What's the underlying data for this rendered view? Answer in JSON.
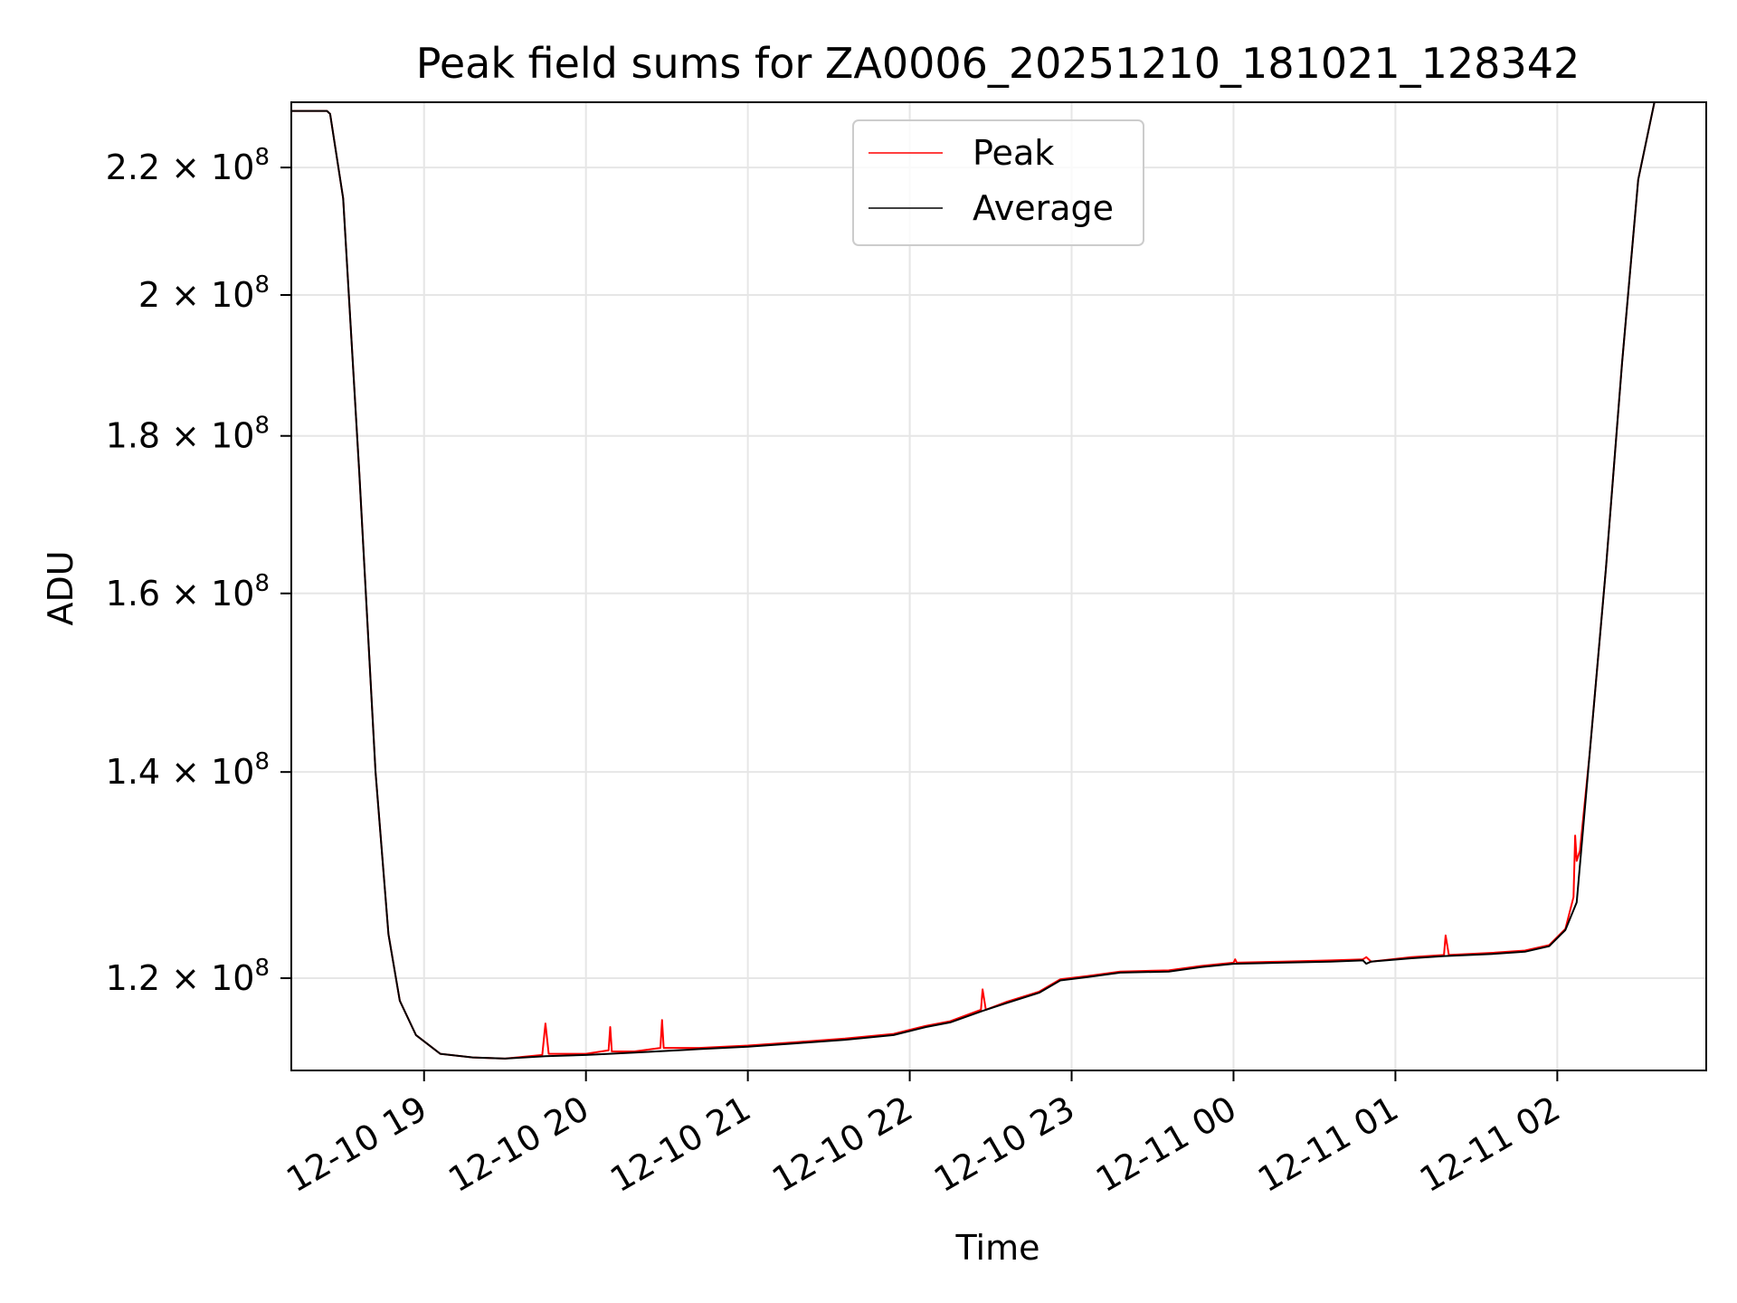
{
  "chart_data": {
    "type": "line",
    "title": "Peak field sums for ZA0006_20251210_181021_128342",
    "xlabel": "Time",
    "ylabel": "ADU",
    "yscale": "log",
    "ylim": [
      112000000,
      231000000
    ],
    "xlim_hours": [
      18.18,
      26.92
    ],
    "grid": true,
    "legend": {
      "location": "upper center",
      "entries": [
        "Peak",
        "Average"
      ]
    },
    "x_ticks": [
      {
        "hour": 19,
        "label": "12-10 19"
      },
      {
        "hour": 20,
        "label": "12-10 20"
      },
      {
        "hour": 21,
        "label": "12-10 21"
      },
      {
        "hour": 22,
        "label": "12-10 22"
      },
      {
        "hour": 23,
        "label": "12-10 23"
      },
      {
        "hour": 24,
        "label": "12-11 00"
      },
      {
        "hour": 25,
        "label": "12-11 01"
      },
      {
        "hour": 26,
        "label": "12-11 02"
      }
    ],
    "y_ticks": [
      {
        "value": 120000000,
        "mantissa": "1.2",
        "exponent": "8"
      },
      {
        "value": 140000000,
        "mantissa": "1.4",
        "exponent": "8"
      },
      {
        "value": 160000000,
        "mantissa": "1.6",
        "exponent": "8"
      },
      {
        "value": 180000000,
        "mantissa": "1.8",
        "exponent": "8"
      },
      {
        "value": 200000000,
        "mantissa": "2",
        "exponent": "8"
      },
      {
        "value": 220000000,
        "mantissa": "2.2",
        "exponent": "8"
      }
    ],
    "x_tick_times_label": "hours since 2025-12-10 00:00",
    "series": [
      {
        "name": "Peak",
        "color": "#ff0000",
        "x": [
          18.18,
          18.4,
          18.42,
          18.5,
          18.6,
          18.7,
          18.78,
          18.85,
          18.95,
          19.1,
          19.3,
          19.5,
          19.73,
          19.75,
          19.77,
          20.0,
          20.14,
          20.15,
          20.16,
          20.3,
          20.46,
          20.47,
          20.48,
          20.7,
          21.0,
          21.3,
          21.6,
          21.9,
          22.1,
          22.25,
          22.44,
          22.45,
          22.47,
          22.6,
          22.8,
          22.93,
          23.1,
          23.3,
          23.6,
          23.8,
          24.0,
          24.01,
          24.02,
          24.3,
          24.6,
          24.8,
          24.82,
          24.85,
          25.1,
          25.3,
          25.31,
          25.33,
          25.6,
          25.8,
          25.95,
          26.05,
          26.1,
          26.11,
          26.12,
          26.14,
          26.2,
          26.3,
          26.4,
          26.5,
          26.6,
          26.92
        ],
        "y": [
          229500000,
          229500000,
          229000000,
          215000000,
          175000000,
          140000000,
          124000000,
          118000000,
          115000000,
          113400000,
          113100000,
          113000000,
          113300000,
          116000000,
          113400000,
          113400000,
          113700000,
          115700000,
          113600000,
          113600000,
          113900000,
          116300000,
          113900000,
          113900000,
          114100000,
          114400000,
          114700000,
          115100000,
          115800000,
          116200000,
          117200000,
          119000000,
          117200000,
          117900000,
          118800000,
          119900000,
          120200000,
          120600000,
          120700000,
          121100000,
          121400000,
          121700000,
          121400000,
          121500000,
          121600000,
          121700000,
          121900000,
          121500000,
          121900000,
          122100000,
          123900000,
          122100000,
          122300000,
          122500000,
          123000000,
          124500000,
          127500000,
          133500000,
          131000000,
          132000000,
          142000000,
          163000000,
          190000000,
          218000000,
          231000000,
          231000000
        ]
      },
      {
        "name": "Average",
        "color": "#000000",
        "x": [
          18.18,
          18.4,
          18.42,
          18.5,
          18.6,
          18.7,
          18.78,
          18.85,
          18.95,
          19.1,
          19.3,
          19.5,
          19.75,
          20.0,
          20.3,
          20.7,
          21.0,
          21.3,
          21.6,
          21.9,
          22.1,
          22.25,
          22.45,
          22.6,
          22.8,
          22.93,
          23.1,
          23.3,
          23.6,
          23.8,
          24.0,
          24.3,
          24.6,
          24.8,
          24.82,
          24.85,
          25.1,
          25.3,
          25.6,
          25.8,
          25.95,
          26.05,
          26.12,
          26.2,
          26.3,
          26.4,
          26.5,
          26.6,
          26.92
        ],
        "y": [
          229500000,
          229500000,
          229000000,
          215000000,
          175000000,
          140000000,
          124000000,
          118000000,
          115000000,
          113400000,
          113100000,
          113000000,
          113200000,
          113300000,
          113500000,
          113800000,
          114000000,
          114300000,
          114600000,
          115000000,
          115700000,
          116100000,
          117100000,
          117800000,
          118700000,
          119800000,
          120100000,
          120500000,
          120600000,
          121000000,
          121300000,
          121400000,
          121500000,
          121600000,
          121300000,
          121500000,
          121800000,
          122000000,
          122200000,
          122400000,
          122900000,
          124400000,
          127000000,
          142000000,
          163000000,
          190000000,
          218000000,
          231000000,
          231000000
        ]
      }
    ]
  }
}
